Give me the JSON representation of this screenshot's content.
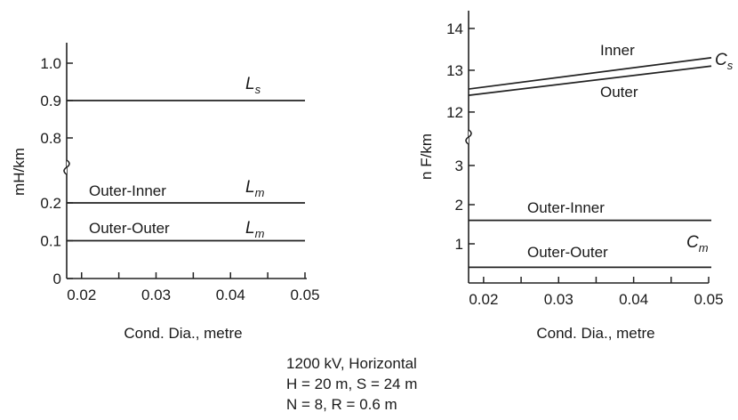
{
  "caption": {
    "line1": "1200 kV, Horizontal",
    "line2": "H = 20 m, S = 24 m",
    "line3": "N = 8, R = 0.6 m"
  },
  "chart_data": [
    {
      "type": "line",
      "title": "",
      "xlabel": "Cond. Dia., metre",
      "ylabel": "mH/km",
      "xlim": [
        0.018,
        0.05
      ],
      "x_ticks": [
        "0.02",
        "0.03",
        "0.04",
        "0.05"
      ],
      "y_ticks": [
        "0",
        "0.1",
        "0.2",
        "0.8",
        "0.9",
        "1.0"
      ],
      "y_axis_break": [
        0.2,
        0.8
      ],
      "grid": false,
      "series": [
        {
          "label": "",
          "symbol": "L",
          "subscript": "s",
          "x": [
            0.018,
            0.05
          ],
          "y": [
            0.9,
            0.9
          ]
        },
        {
          "label": "Outer-Inner",
          "symbol": "L",
          "subscript": "m",
          "x": [
            0.018,
            0.05
          ],
          "y": [
            0.2,
            0.2
          ]
        },
        {
          "label": "Outer-Outer",
          "symbol": "L",
          "subscript": "m",
          "x": [
            0.018,
            0.05
          ],
          "y": [
            0.1,
            0.1
          ]
        }
      ]
    },
    {
      "type": "line",
      "title": "",
      "xlabel": "Cond. Dia., metre",
      "ylabel": "n F/km",
      "xlim": [
        0.018,
        0.05
      ],
      "x_ticks": [
        "0.02",
        "0.03",
        "0.04",
        "0.05"
      ],
      "y_ticks": [
        "1",
        "2",
        "3",
        "12",
        "13",
        "14"
      ],
      "y_axis_break": [
        3.5,
        11.7
      ],
      "grid": false,
      "series": [
        {
          "label": "Inner",
          "symbol": "C",
          "subscript": "s",
          "x": [
            0.018,
            0.05
          ],
          "y": [
            12.55,
            13.3
          ]
        },
        {
          "label": "Outer",
          "symbol": "",
          "subscript": "",
          "x": [
            0.018,
            0.05
          ],
          "y": [
            12.4,
            13.1
          ]
        },
        {
          "label": "Outer-Inner",
          "symbol": "",
          "subscript": "",
          "x": [
            0.018,
            0.05
          ],
          "y": [
            1.6,
            1.6
          ]
        },
        {
          "label": "Outer-Outer",
          "symbol": "C",
          "subscript": "m",
          "x": [
            0.018,
            0.05
          ],
          "y": [
            0.4,
            0.4
          ]
        }
      ]
    }
  ]
}
